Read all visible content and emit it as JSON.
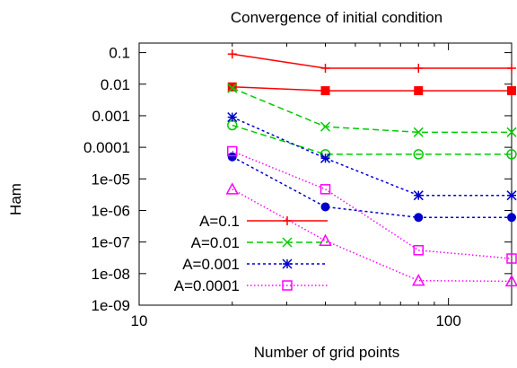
{
  "chart_data": {
    "type": "line",
    "title": "Convergence of initial condition",
    "xlabel": "Number of grid points",
    "ylabel": "Ham",
    "x_scale": "log",
    "y_scale": "log",
    "xlim": [
      10,
      160
    ],
    "ylim": [
      1e-09,
      0.2
    ],
    "x_ticks": [
      {
        "value": 10,
        "label": "10"
      },
      {
        "value": 100,
        "label": "100"
      }
    ],
    "y_ticks": [
      {
        "value": 0.1,
        "label": "0.1"
      },
      {
        "value": 0.01,
        "label": "0.01"
      },
      {
        "value": 0.001,
        "label": "0.001"
      },
      {
        "value": 0.0001,
        "label": "0.0001"
      },
      {
        "value": 1e-05,
        "label": "1e-05"
      },
      {
        "value": 1e-06,
        "label": "1e-06"
      },
      {
        "value": 1e-07,
        "label": "1e-07"
      },
      {
        "value": 1e-08,
        "label": "1e-08"
      },
      {
        "value": 1e-09,
        "label": "1e-09"
      }
    ],
    "grid": false,
    "legend_position": "bottom-left",
    "series": [
      {
        "name": "A=0.1",
        "color": "#ff0000",
        "dash": "solid",
        "lines": [
          {
            "marker": "plus",
            "x": [
              20,
              40,
              80,
              160
            ],
            "y": [
              0.09,
              0.032,
              0.032,
              0.032
            ]
          },
          {
            "marker": "filled-square",
            "x": [
              20,
              40,
              80,
              160
            ],
            "y": [
              0.0082,
              0.0062,
              0.0062,
              0.0062
            ]
          }
        ]
      },
      {
        "name": "A=0.01",
        "color": "#00cc00",
        "dash": "dashed",
        "lines": [
          {
            "marker": "cross",
            "x": [
              20,
              40,
              80,
              160
            ],
            "y": [
              0.0075,
              0.00045,
              0.0003,
              0.0003
            ]
          },
          {
            "marker": "open-circle",
            "x": [
              20,
              40,
              80,
              160
            ],
            "y": [
              0.0005,
              6e-05,
              6e-05,
              6e-05
            ]
          }
        ]
      },
      {
        "name": "A=0.001",
        "color": "#0000cc",
        "dash": "dotted",
        "lines": [
          {
            "marker": "star",
            "x": [
              20,
              40,
              80,
              160
            ],
            "y": [
              0.0009,
              4.5e-05,
              3e-06,
              3e-06
            ]
          },
          {
            "marker": "filled-circle",
            "x": [
              20,
              40,
              80,
              160
            ],
            "y": [
              5e-05,
              1.3e-06,
              6e-07,
              6e-07
            ]
          }
        ]
      },
      {
        "name": "A=0.0001",
        "color": "#ff00ff",
        "dash": "dotted-fine",
        "lines": [
          {
            "marker": "open-square",
            "x": [
              20,
              40,
              80,
              160
            ],
            "y": [
              7.5e-05,
              4.7e-06,
              5.5e-08,
              3e-08
            ]
          },
          {
            "marker": "open-triangle",
            "x": [
              20,
              40,
              80,
              160
            ],
            "y": [
              4.7e-06,
              1.1e-07,
              6e-09,
              5.7e-09
            ]
          }
        ]
      }
    ]
  }
}
